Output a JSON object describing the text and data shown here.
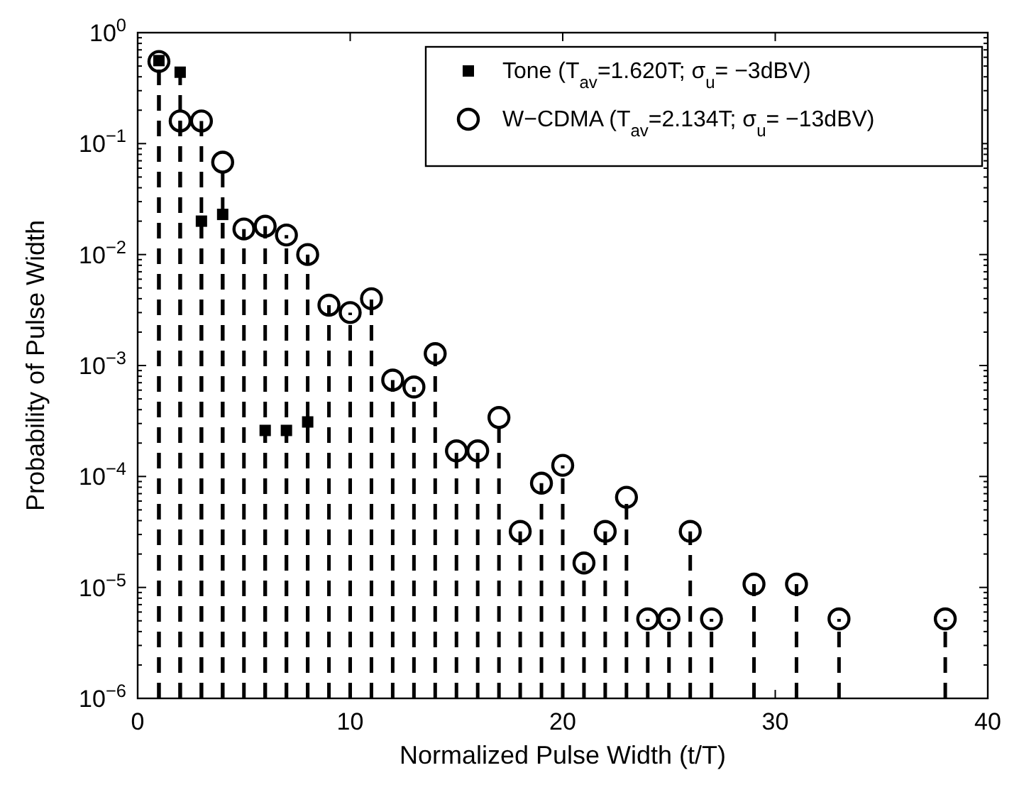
{
  "chart_data": {
    "type": "lollipop",
    "xlabel": "Normalized Pulse Width (t/T)",
    "ylabel": "Probability of Pulse Width",
    "log": "y",
    "xlim": [
      0,
      40
    ],
    "ylim": [
      1e-06,
      1
    ],
    "xticks": [
      0,
      10,
      20,
      30,
      40
    ],
    "yticks": [
      {
        "value": 1e-06,
        "label": "10$^{−6}$"
      },
      {
        "value": 1e-05,
        "label": "10$^{−5}$"
      },
      {
        "value": 0.0001,
        "label": "10$^{−4}$"
      },
      {
        "value": 0.001,
        "label": "10$^{−3}$"
      },
      {
        "value": 0.01,
        "label": "10$^{−2}$"
      },
      {
        "value": 0.1,
        "label": "10$^{−1}$"
      },
      {
        "value": 1,
        "label": "10$^{0}$"
      }
    ],
    "grid": false,
    "legend": "top right",
    "line_style": "dashed",
    "series": [
      {
        "name": "Tone (T$_{av}$=1.620T; σ$_{u}$= −3dBV)",
        "color": "#000000",
        "marker": "square",
        "x": [
          1,
          2,
          3,
          4,
          6,
          7,
          8
        ],
        "values": [
          0.56,
          0.44,
          0.02,
          0.023,
          0.00026,
          0.00026,
          0.00031
        ]
      },
      {
        "name": "W−CDMA (T$_{av}$=2.134T; σ$_{u}$= −13dBV)",
        "color": "#000000",
        "marker": "circle",
        "x": [
          1,
          2,
          3,
          4,
          5,
          6,
          7,
          8,
          9,
          10,
          11,
          12,
          13,
          14,
          15,
          16,
          17,
          18,
          19,
          20,
          21,
          22,
          23,
          24,
          25,
          26,
          27,
          29,
          31,
          33,
          38
        ],
        "values": [
          0.55,
          0.16,
          0.16,
          0.068,
          0.017,
          0.018,
          0.015,
          0.01,
          0.0035,
          0.003,
          0.004,
          0.00074,
          0.00064,
          0.00128,
          0.00017,
          0.00017,
          0.00034,
          3.2e-05,
          8.7e-05,
          0.000126,
          1.66e-05,
          3.2e-05,
          6.5e-05,
          5.2e-06,
          5.2e-06,
          3.2e-05,
          5.2e-06,
          1.07e-05,
          1.07e-05,
          5.2e-06,
          5.2e-06
        ]
      }
    ]
  }
}
